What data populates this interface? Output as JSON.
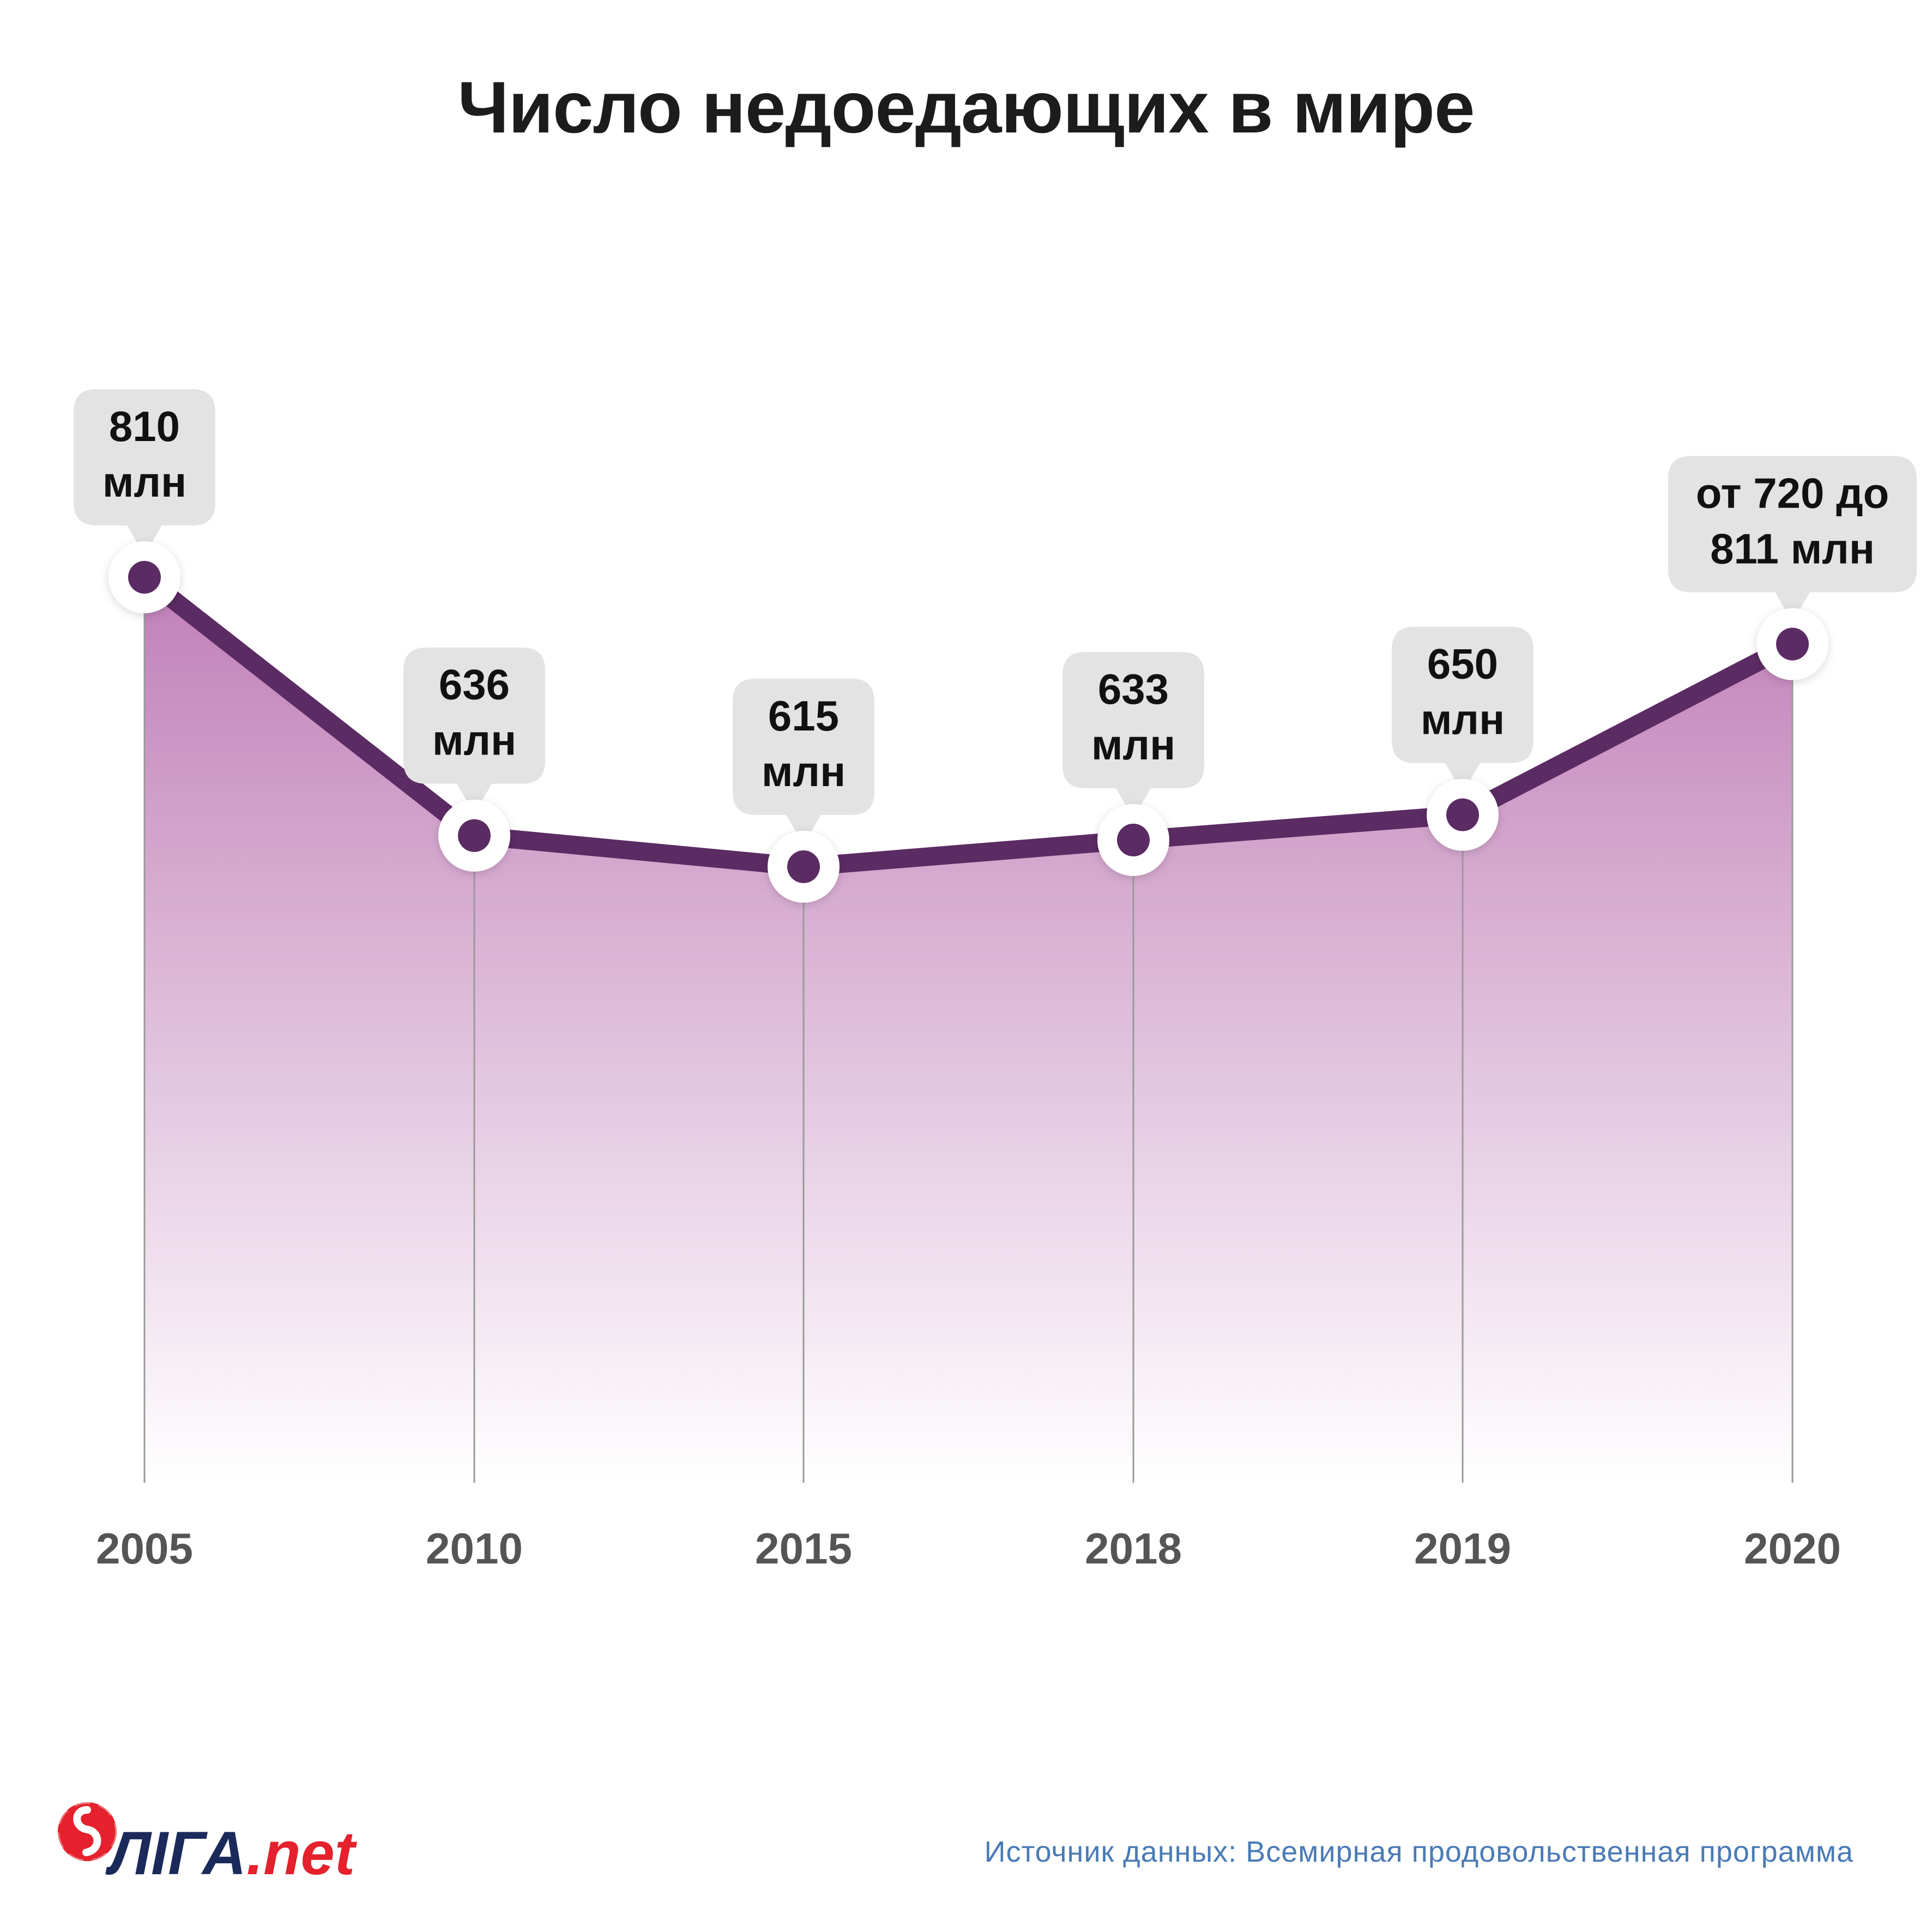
{
  "title": "Число недоедающих в мире",
  "chart_data": {
    "type": "area",
    "title": "Число недоедающих в мире",
    "unit": "млн",
    "xlabel": "",
    "ylabel": "",
    "categories": [
      "2005",
      "2010",
      "2015",
      "2018",
      "2019",
      "2020"
    ],
    "series": [
      {
        "values": [
          810,
          636,
          615,
          633,
          650,
          765
        ],
        "labels": [
          [
            "810",
            "млн"
          ],
          [
            "636",
            "млн"
          ],
          [
            "615",
            "млн"
          ],
          [
            "633",
            "млн"
          ],
          [
            "650",
            "млн"
          ],
          [
            "от 720 до",
            "811 млн"
          ]
        ]
      }
    ],
    "ylim": [
      200,
      850
    ],
    "grid": false,
    "legend": "none",
    "colors": {
      "line": "#5b2b63",
      "area_top": "#c07fb8",
      "area_bottom": "#ffffff",
      "marker_fill": "#5b2b63",
      "marker_ring": "#ffffff",
      "callout_bg": "#e3e3e3",
      "drop_line": "#9a9a9a",
      "tick_text": "#555555"
    }
  },
  "footer": {
    "logo_main": "ЛIГА",
    "logo_accent": ".net",
    "source": "Источник данных: Всемирная продовольственная программа"
  }
}
